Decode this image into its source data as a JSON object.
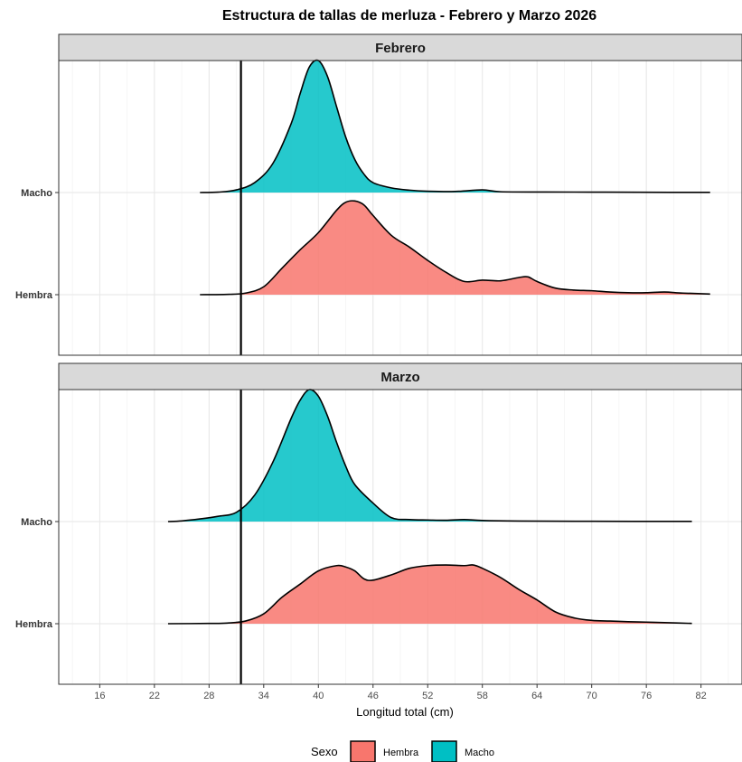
{
  "chart_data": {
    "type": "area",
    "subtype": "ridgeline-density",
    "title": "Estructura de tallas de merluza - Febrero y Marzo 2026",
    "xlabel": "Longitud total (cm)",
    "ylabel": "",
    "xlim": [
      11.5,
      86.5
    ],
    "x_ticks": [
      16,
      22,
      28,
      34,
      40,
      46,
      52,
      58,
      64,
      70,
      76,
      82
    ],
    "reference_line_x": 31.5,
    "legend": {
      "title": "Sexo",
      "position": "bottom",
      "entries": [
        {
          "name": "Hembra",
          "color": "#F8766D"
        },
        {
          "name": "Macho",
          "color": "#00BFC4"
        }
      ]
    },
    "categories": [
      "Macho",
      "Hembra"
    ],
    "panels": [
      {
        "name": "Febrero",
        "series": [
          {
            "name": "Macho",
            "color": "#00BFC4",
            "points": [
              [
                27,
                0
              ],
              [
                29,
                0.003
              ],
              [
                31,
                0.02
              ],
              [
                33,
                0.075
              ],
              [
                35,
                0.22
              ],
              [
                37,
                0.52
              ],
              [
                38,
                0.75
              ],
              [
                39,
                0.95
              ],
              [
                40,
                1.0
              ],
              [
                41,
                0.88
              ],
              [
                42,
                0.65
              ],
              [
                43,
                0.42
              ],
              [
                44,
                0.25
              ],
              [
                45,
                0.14
              ],
              [
                46,
                0.075
              ],
              [
                48,
                0.035
              ],
              [
                50,
                0.018
              ],
              [
                52,
                0.01
              ],
              [
                55,
                0.008
              ],
              [
                58,
                0.02
              ],
              [
                60,
                0.006
              ],
              [
                65,
                0.004
              ],
              [
                70,
                0.003
              ],
              [
                75,
                0.002
              ],
              [
                83,
                0.001
              ]
            ]
          },
          {
            "name": "Hembra",
            "color": "#F8766D",
            "points": [
              [
                27,
                0
              ],
              [
                30,
                0.002
              ],
              [
                32,
                0.012
              ],
              [
                34,
                0.06
              ],
              [
                36,
                0.2
              ],
              [
                38,
                0.34
              ],
              [
                40,
                0.47
              ],
              [
                42,
                0.64
              ],
              [
                43,
                0.7
              ],
              [
                44,
                0.71
              ],
              [
                45,
                0.68
              ],
              [
                46,
                0.6
              ],
              [
                48,
                0.45
              ],
              [
                50,
                0.36
              ],
              [
                52,
                0.26
              ],
              [
                54,
                0.17
              ],
              [
                56,
                0.1
              ],
              [
                58,
                0.11
              ],
              [
                60,
                0.105
              ],
              [
                62,
                0.13
              ],
              [
                63,
                0.135
              ],
              [
                64,
                0.1
              ],
              [
                66,
                0.05
              ],
              [
                68,
                0.035
              ],
              [
                70,
                0.03
              ],
              [
                72,
                0.02
              ],
              [
                74,
                0.015
              ],
              [
                76,
                0.015
              ],
              [
                78,
                0.02
              ],
              [
                80,
                0.012
              ],
              [
                83,
                0.005
              ]
            ]
          }
        ]
      },
      {
        "name": "Marzo",
        "series": [
          {
            "name": "Macho",
            "color": "#00BFC4",
            "points": [
              [
                23.5,
                0
              ],
              [
                25,
                0.005
              ],
              [
                27,
                0.02
              ],
              [
                29,
                0.04
              ],
              [
                31,
                0.07
              ],
              [
                33,
                0.2
              ],
              [
                35,
                0.45
              ],
              [
                37,
                0.78
              ],
              [
                38,
                0.92
              ],
              [
                39,
                1.0
              ],
              [
                40,
                0.95
              ],
              [
                41,
                0.8
              ],
              [
                42,
                0.6
              ],
              [
                43,
                0.42
              ],
              [
                44,
                0.28
              ],
              [
                46,
                0.14
              ],
              [
                48,
                0.03
              ],
              [
                50,
                0.015
              ],
              [
                52,
                0.012
              ],
              [
                54,
                0.01
              ],
              [
                56,
                0.015
              ],
              [
                58,
                0.008
              ],
              [
                62,
                0.004
              ],
              [
                70,
                0.002
              ],
              [
                81,
                0.001
              ]
            ]
          },
          {
            "name": "Hembra",
            "color": "#F8766D",
            "points": [
              [
                23.5,
                0
              ],
              [
                28,
                0.002
              ],
              [
                30,
                0.005
              ],
              [
                32,
                0.02
              ],
              [
                34,
                0.075
              ],
              [
                36,
                0.2
              ],
              [
                38,
                0.3
              ],
              [
                40,
                0.4
              ],
              [
                42,
                0.44
              ],
              [
                43,
                0.43
              ],
              [
                44,
                0.4
              ],
              [
                45,
                0.34
              ],
              [
                46,
                0.33
              ],
              [
                48,
                0.37
              ],
              [
                50,
                0.42
              ],
              [
                52,
                0.44
              ],
              [
                54,
                0.445
              ],
              [
                56,
                0.44
              ],
              [
                57,
                0.445
              ],
              [
                58,
                0.42
              ],
              [
                60,
                0.35
              ],
              [
                62,
                0.26
              ],
              [
                64,
                0.18
              ],
              [
                66,
                0.09
              ],
              [
                68,
                0.045
              ],
              [
                70,
                0.025
              ],
              [
                72,
                0.02
              ],
              [
                74,
                0.015
              ],
              [
                76,
                0.012
              ],
              [
                78,
                0.008
              ],
              [
                81,
                0.002
              ]
            ]
          }
        ]
      }
    ]
  }
}
